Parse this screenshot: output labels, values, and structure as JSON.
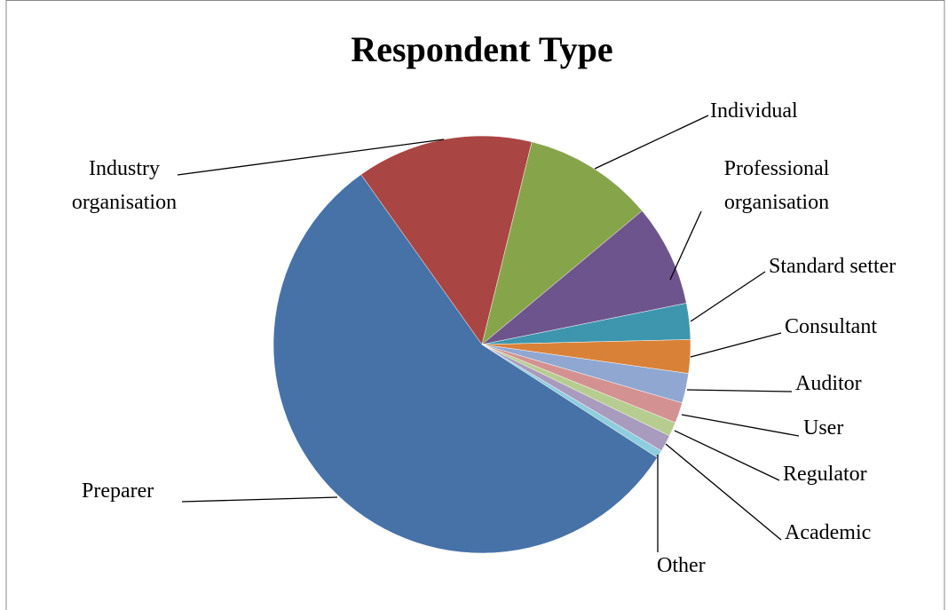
{
  "chart_data": {
    "type": "pie",
    "title": "Respondent Type",
    "categories": [
      "Preparer",
      "Industry organisation",
      "Individual",
      "Professional organisation",
      "Standard setter",
      "Consultant",
      "Auditor",
      "User",
      "Regulator",
      "Academic",
      "Other"
    ],
    "values": [
      56.1,
      13.7,
      10.1,
      7.9,
      2.8,
      2.6,
      2.3,
      1.6,
      1.1,
      1.3,
      0.6
    ],
    "colors": [
      "#4672a8",
      "#a94543",
      "#86a44a",
      "#6e548d",
      "#3d96ae",
      "#da8138",
      "#8fa7d1",
      "#d39291",
      "#b6cd8f",
      "#a99bbd",
      "#8ecddd"
    ]
  }
}
